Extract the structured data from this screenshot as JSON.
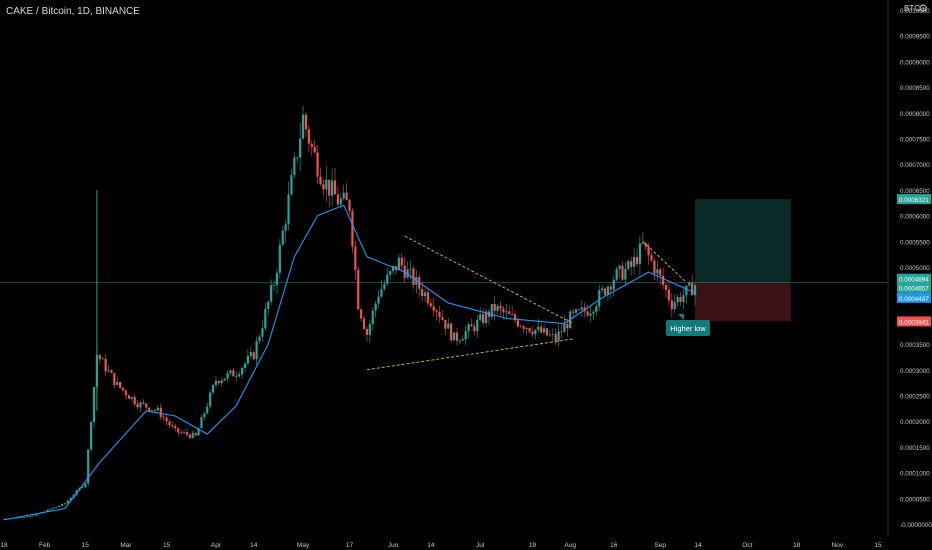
{
  "header": {
    "title": "CAKE / Bitcoin, 1D, BINANCE",
    "unit": "BTC",
    "settings_icon": "gear-icon"
  },
  "colors": {
    "background": "#000000",
    "candle_up": "#26a69a",
    "candle_down": "#ef5350",
    "ma_line": "#2196f3",
    "trend_line": "#f0b429",
    "target_zone": "#0b2a27",
    "stop_zone": "#3a1114",
    "price_tag": "#26a69a",
    "annotation_bg": "#127a78",
    "axis_text": "#c9c9c9"
  },
  "chart_data": {
    "type": "candlestick",
    "title": "CAKE / Bitcoin, 1D, BINANCE",
    "y_unit": "BTC",
    "ylim": [
      -1e-07,
      0.001
    ],
    "yticks": [
      "-0.0000000",
      "0.0000500",
      "0.0001000",
      "0.0001500",
      "0.0002000",
      "0.0002500",
      "0.0003000",
      "0.0003500",
      "0.0004000",
      "0.0004500",
      "0.0005000",
      "0.0005500",
      "0.0006000",
      "0.0006500",
      "0.0007000",
      "0.0007500",
      "0.0008000",
      "0.0008500",
      "0.0009000",
      "0.0009500",
      "0.0010000"
    ],
    "xticks": [
      "18",
      "Feb",
      "15",
      "Mar",
      "15",
      "Apr",
      "14",
      "May",
      "17",
      "Jun",
      "14",
      "Jul",
      "19",
      "Aug",
      "16",
      "Sep",
      "14",
      "Oct",
      "18",
      "Nov",
      "15"
    ],
    "x_range": [
      "2021-01-18",
      "2021-11-15"
    ],
    "price_tags": [
      {
        "label": "0.0006321",
        "role": "take-profit",
        "color": "#26a69a"
      },
      {
        "label": "0.0004694",
        "role": "entry",
        "color": "#26a69a"
      },
      {
        "label": "0.0004657",
        "role": "current",
        "color": "#26a69a"
      },
      {
        "label": "0.0004497",
        "role": "moving-average",
        "color": "#2196f3"
      },
      {
        "label": "0.0003941",
        "role": "stop-loss",
        "color": "#ef5350"
      }
    ],
    "annotations": [
      {
        "text": "Higher low"
      }
    ],
    "price_path": [
      [
        "2021-01-18",
        1e-05
      ],
      [
        "2021-01-28",
        1.6e-05
      ],
      [
        "2021-02-08",
        4e-05
      ],
      [
        "2021-02-15",
        8e-05
      ],
      [
        "2021-02-19",
        0.00033
      ],
      [
        "2021-02-26",
        0.00027
      ],
      [
        "2021-03-05",
        0.000235
      ],
      [
        "2021-03-12",
        0.00022
      ],
      [
        "2021-03-18",
        0.00018
      ],
      [
        "2021-03-25",
        0.00017
      ],
      [
        "2021-04-01",
        0.00028
      ],
      [
        "2021-04-08",
        0.000295
      ],
      [
        "2021-04-14",
        0.00033
      ],
      [
        "2021-04-21",
        0.00047
      ],
      [
        "2021-04-26",
        0.00063
      ],
      [
        "2021-05-01",
        0.00079
      ],
      [
        "2021-05-04",
        0.00073
      ],
      [
        "2021-05-08",
        0.00067
      ],
      [
        "2021-05-13",
        0.00063
      ],
      [
        "2021-05-17",
        0.00062
      ],
      [
        "2021-05-20",
        0.00043
      ],
      [
        "2021-05-23",
        0.00037
      ],
      [
        "2021-05-27",
        0.00045
      ],
      [
        "2021-06-03",
        0.00051
      ],
      [
        "2021-06-10",
        0.00046
      ],
      [
        "2021-06-15",
        0.00043
      ],
      [
        "2021-06-22",
        0.00036
      ],
      [
        "2021-06-28",
        0.00038
      ],
      [
        "2021-07-06",
        0.00042
      ],
      [
        "2021-07-12",
        0.0004
      ],
      [
        "2021-07-19",
        0.00038
      ],
      [
        "2021-07-27",
        0.00036
      ],
      [
        "2021-08-01",
        0.0004
      ],
      [
        "2021-08-08",
        0.00042
      ],
      [
        "2021-08-16",
        0.00048
      ],
      [
        "2021-08-22",
        0.0005
      ],
      [
        "2021-08-26",
        0.00054
      ],
      [
        "2021-08-30",
        0.0005
      ],
      [
        "2021-09-05",
        0.00043
      ],
      [
        "2021-09-10",
        0.00045
      ],
      [
        "2021-09-13",
        0.0004657
      ]
    ],
    "moving_average": [
      [
        "2021-01-18",
        8e-06
      ],
      [
        "2021-02-08",
        3e-05
      ],
      [
        "2021-02-20",
        0.00012
      ],
      [
        "2021-03-08",
        0.00022
      ],
      [
        "2021-03-18",
        0.00021
      ],
      [
        "2021-03-29",
        0.000175
      ],
      [
        "2021-04-08",
        0.00023
      ],
      [
        "2021-04-19",
        0.00035
      ],
      [
        "2021-04-28",
        0.00052
      ],
      [
        "2021-05-06",
        0.0006
      ],
      [
        "2021-05-15",
        0.00062
      ],
      [
        "2021-05-23",
        0.00052
      ],
      [
        "2021-06-05",
        0.00049
      ],
      [
        "2021-06-20",
        0.00043
      ],
      [
        "2021-07-10",
        0.0004
      ],
      [
        "2021-07-30",
        0.00039
      ],
      [
        "2021-08-12",
        0.00044
      ],
      [
        "2021-08-28",
        0.00049
      ],
      [
        "2021-09-13",
        0.0004497
      ]
    ],
    "trend_lines": [
      {
        "from": [
          "2021-06-05",
          0.00056
        ],
        "to": [
          "2021-08-02",
          0.00039
        ]
      },
      {
        "from": [
          "2021-05-23",
          0.0003
        ],
        "to": [
          "2021-08-02",
          0.00036
        ]
      },
      {
        "from": [
          "2021-08-26",
          0.00055
        ],
        "to": [
          "2021-09-10",
          0.00047
        ]
      }
    ],
    "position": {
      "start": "2021-09-13",
      "end": "2021-10-16",
      "entry": 0.0004694,
      "target": 0.0006321,
      "stop": 0.0003941
    },
    "spike": {
      "date": "2021-02-19",
      "high": 0.00065,
      "low": 0.00022
    }
  }
}
